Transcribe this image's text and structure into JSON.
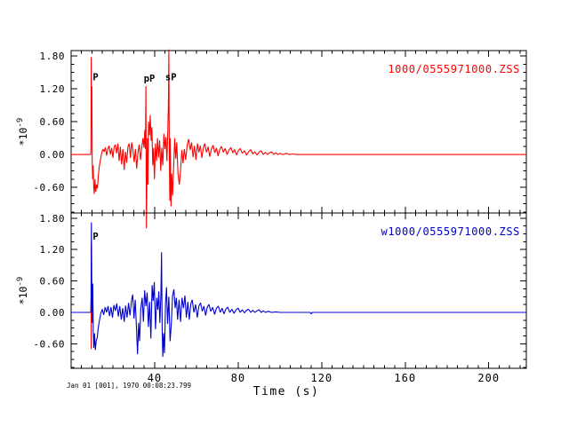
{
  "figure": {
    "background": "#ffffff",
    "axis_color": "#000000",
    "footer": {
      "timestamp": "Jan 01 [001], 1970 00:08:23.799",
      "xlabel": "Time (s)"
    }
  },
  "chart_data": [
    {
      "type": "line",
      "panel": "top",
      "legend": "1000/0555971000.ZSS",
      "line_color": "#ff0000",
      "ylabel": {
        "base": "*10",
        "exponent": "-9"
      },
      "xlim": [
        0,
        218
      ],
      "ylim": [
        -1.07,
        1.9
      ],
      "x_minor_step": 5,
      "y_minor_step": 0.15,
      "show_x_labels": false,
      "xticks": [
        {
          "value": 40,
          "label": "40"
        },
        {
          "value": 80,
          "label": "80"
        },
        {
          "value": 120,
          "label": "120"
        },
        {
          "value": 160,
          "label": "160"
        },
        {
          "value": 200,
          "label": "200"
        }
      ],
      "yticks": [
        {
          "value": 1.8,
          "label": "1.80"
        },
        {
          "value": 1.2,
          "label": "1.20"
        },
        {
          "value": 0.6,
          "label": "0.60"
        },
        {
          "value": 0.0,
          "label": "0.00"
        },
        {
          "value": -0.6,
          "label": "-0.60"
        }
      ],
      "phase_labels": [
        {
          "text": "P",
          "t": 10.4,
          "v": 1.36
        },
        {
          "text": "pP",
          "t": 34.8,
          "v": 1.33
        },
        {
          "text": "sP",
          "t": 45.1,
          "v": 1.36
        }
      ],
      "markers": [],
      "points": [
        [
          0,
          0
        ],
        [
          9.4,
          0
        ],
        [
          9.5,
          0.15
        ],
        [
          9.62,
          1.78
        ],
        [
          9.75,
          0.5
        ],
        [
          9.9,
          1.25
        ],
        [
          10.1,
          -0.1
        ],
        [
          10.3,
          -0.45
        ],
        [
          10.55,
          -0.2
        ],
        [
          10.8,
          -0.6
        ],
        [
          11.1,
          -0.72
        ],
        [
          11.4,
          -0.45
        ],
        [
          11.8,
          -0.68
        ],
        [
          12.2,
          -0.55
        ],
        [
          12.6,
          -0.62
        ],
        [
          13,
          -0.4
        ],
        [
          13.5,
          -0.22
        ],
        [
          14,
          -0.1
        ],
        [
          14.6,
          0.02
        ],
        [
          15.2,
          0.1
        ],
        [
          15.8,
          0.05
        ],
        [
          16.4,
          0.13
        ],
        [
          17,
          -0.02
        ],
        [
          17.6,
          0.1
        ],
        [
          18.2,
          0.16
        ],
        [
          18.8,
          0
        ],
        [
          19.4,
          0.12
        ],
        [
          20,
          -0.06
        ],
        [
          20.6,
          0.14
        ],
        [
          21.2,
          0.18
        ],
        [
          21.8,
          0.02
        ],
        [
          22.4,
          0.2
        ],
        [
          23,
          -0.12
        ],
        [
          23.6,
          0.14
        ],
        [
          24.2,
          -0.18
        ],
        [
          24.8,
          0.1
        ],
        [
          25.4,
          -0.28
        ],
        [
          26,
          0.05
        ],
        [
          26.6,
          -0.15
        ],
        [
          27.2,
          0.14
        ],
        [
          27.8,
          0.2
        ],
        [
          28.4,
          -0.06
        ],
        [
          29,
          0.22
        ],
        [
          29.6,
          0.08
        ],
        [
          30.2,
          -0.14
        ],
        [
          30.8,
          0.1
        ],
        [
          31.4,
          -0.26
        ],
        [
          32,
          0.04
        ],
        [
          32.6,
          0.18
        ],
        [
          33.2,
          -0.1
        ],
        [
          33.8,
          0.12
        ],
        [
          34.4,
          0.3
        ],
        [
          34.9,
          0.12
        ],
        [
          35.3,
          0.45
        ],
        [
          35.6,
          0.1
        ],
        [
          35.8,
          1.25
        ],
        [
          36.05,
          -1.35
        ],
        [
          36.3,
          -0.35
        ],
        [
          36.55,
          0.3
        ],
        [
          36.8,
          -0.55
        ],
        [
          37.1,
          0.6
        ],
        [
          37.5,
          0.35
        ],
        [
          37.9,
          0.72
        ],
        [
          38.3,
          0.25
        ],
        [
          38.7,
          0.5
        ],
        [
          39.1,
          -0.2
        ],
        [
          39.5,
          0.12
        ],
        [
          39.9,
          -0.45
        ],
        [
          40.4,
          0.2
        ],
        [
          40.9,
          -0.12
        ],
        [
          41.4,
          0.3
        ],
        [
          41.9,
          -0.05
        ],
        [
          42.4,
          0.26
        ],
        [
          42.9,
          -0.3
        ],
        [
          43.4,
          0.12
        ],
        [
          43.9,
          -0.2
        ],
        [
          44.4,
          0.38
        ],
        [
          44.9,
          0.1
        ],
        [
          45.4,
          0.32
        ],
        [
          45.9,
          -0.12
        ],
        [
          46.3,
          0.4
        ],
        [
          46.6,
          0.9
        ],
        [
          46.8,
          1.92
        ],
        [
          47,
          0.2
        ],
        [
          47.25,
          -0.85
        ],
        [
          47.5,
          0.3
        ],
        [
          47.8,
          -0.95
        ],
        [
          48.2,
          -0.35
        ],
        [
          48.6,
          -0.75
        ],
        [
          49.1,
          -0.25
        ],
        [
          49.6,
          0.3
        ],
        [
          50.1,
          -0.08
        ],
        [
          50.6,
          0.22
        ],
        [
          51.2,
          -0.35
        ],
        [
          51.8,
          -0.55
        ],
        [
          52.4,
          -0.3
        ],
        [
          53,
          0.08
        ],
        [
          53.6,
          -0.16
        ],
        [
          54.2,
          0.1
        ],
        [
          54.9,
          -0.1
        ],
        [
          55.6,
          0.18
        ],
        [
          56.3,
          0.28
        ],
        [
          57,
          0.08
        ],
        [
          57.7,
          0.22
        ],
        [
          58.4,
          -0.05
        ],
        [
          59.1,
          0.16
        ],
        [
          59.8,
          -0.1
        ],
        [
          60.5,
          0.2
        ],
        [
          61.2,
          0.04
        ],
        [
          61.9,
          0.16
        ],
        [
          62.6,
          -0.06
        ],
        [
          63.3,
          0.12
        ],
        [
          64,
          0.2
        ],
        [
          64.8,
          0.04
        ],
        [
          65.6,
          0.14
        ],
        [
          66.4,
          -0.04
        ],
        [
          67.2,
          0.1
        ],
        [
          68,
          0.17
        ],
        [
          68.8,
          0.03
        ],
        [
          69.6,
          0.12
        ],
        [
          70.4,
          -0.03
        ],
        [
          71.2,
          0.09
        ],
        [
          72,
          0.15
        ],
        [
          72.9,
          0.04
        ],
        [
          73.8,
          0.11
        ],
        [
          74.7,
          0
        ],
        [
          75.6,
          0.08
        ],
        [
          76.5,
          0.13
        ],
        [
          77.4,
          0.03
        ],
        [
          78.3,
          0.09
        ],
        [
          79.2,
          -0.01
        ],
        [
          80.1,
          0.07
        ],
        [
          81,
          0.11
        ],
        [
          82,
          0.02
        ],
        [
          83,
          0.07
        ],
        [
          84,
          -0.01
        ],
        [
          85,
          0.05
        ],
        [
          86,
          0.09
        ],
        [
          87,
          0.01
        ],
        [
          88,
          0.05
        ],
        [
          89,
          -0.01
        ],
        [
          90,
          0.04
        ],
        [
          91,
          0.07
        ],
        [
          92,
          0
        ],
        [
          93,
          0.04
        ],
        [
          94,
          0
        ],
        [
          95,
          0.03
        ],
        [
          96,
          0.05
        ],
        [
          97,
          0
        ],
        [
          98,
          0.03
        ],
        [
          99,
          0
        ],
        [
          100,
          0.02
        ],
        [
          101.5,
          0
        ],
        [
          103,
          0.02
        ],
        [
          104.5,
          0
        ],
        [
          106,
          0.01
        ],
        [
          108,
          0
        ],
        [
          218,
          0
        ]
      ]
    },
    {
      "type": "line",
      "panel": "bottom",
      "legend": "w1000/0555971000.ZSS",
      "line_color": "#0000cc",
      "ylabel": {
        "base": "*10",
        "exponent": "-9"
      },
      "xlim": [
        0,
        218
      ],
      "ylim": [
        -1.07,
        1.9
      ],
      "x_minor_step": 5,
      "y_minor_step": 0.15,
      "show_x_labels": true,
      "xticks": [
        {
          "value": 40,
          "label": "40"
        },
        {
          "value": 80,
          "label": "80"
        },
        {
          "value": 120,
          "label": "120"
        },
        {
          "value": 160,
          "label": "160"
        },
        {
          "value": 200,
          "label": "200"
        }
      ],
      "yticks": [
        {
          "value": 1.8,
          "label": "1.80"
        },
        {
          "value": 1.2,
          "label": "1.20"
        },
        {
          "value": 0.6,
          "label": "0.60"
        },
        {
          "value": 0.0,
          "label": "0.00"
        },
        {
          "value": -0.6,
          "label": "-0.60"
        }
      ],
      "phase_labels": [
        {
          "text": "P",
          "t": 10.4,
          "v": 1.39
        }
      ],
      "markers": [
        {
          "t": 9.6,
          "from": 1.32,
          "to": -0.7,
          "color": "#ff0000"
        }
      ],
      "points": [
        [
          0,
          0
        ],
        [
          9.4,
          0
        ],
        [
          9.55,
          0.3
        ],
        [
          9.7,
          1.72
        ],
        [
          9.9,
          0.4
        ],
        [
          10.1,
          -0.2
        ],
        [
          10.35,
          0.55
        ],
        [
          10.6,
          -0.35
        ],
        [
          10.85,
          -0.68
        ],
        [
          11.2,
          -0.4
        ],
        [
          11.6,
          -0.72
        ],
        [
          12,
          -0.55
        ],
        [
          12.5,
          -0.48
        ],
        [
          13,
          -0.3
        ],
        [
          13.6,
          -0.15
        ],
        [
          14.2,
          -0.02
        ],
        [
          14.9,
          0.06
        ],
        [
          15.6,
          -0.05
        ],
        [
          16.3,
          0.1
        ],
        [
          17,
          0
        ],
        [
          17.7,
          0.12
        ],
        [
          18.4,
          -0.07
        ],
        [
          19.1,
          0.1
        ],
        [
          19.8,
          -0.1
        ],
        [
          20.5,
          0.14
        ],
        [
          21.2,
          0.03
        ],
        [
          21.9,
          0.17
        ],
        [
          22.6,
          -0.08
        ],
        [
          23.3,
          0.12
        ],
        [
          24,
          -0.14
        ],
        [
          24.7,
          0.08
        ],
        [
          25.4,
          -0.18
        ],
        [
          26.1,
          0.13
        ],
        [
          26.8,
          -0.1
        ],
        [
          27.5,
          0.18
        ],
        [
          28.2,
          -0.06
        ],
        [
          28.9,
          0.22
        ],
        [
          29.5,
          0.34
        ],
        [
          30.1,
          -0.12
        ],
        [
          30.7,
          0.24
        ],
        [
          31.3,
          -0.3
        ],
        [
          31.8,
          -0.8
        ],
        [
          32.3,
          -0.2
        ],
        [
          32.8,
          -0.55
        ],
        [
          33.4,
          0.08
        ],
        [
          34,
          0.28
        ],
        [
          34.6,
          -0.18
        ],
        [
          35.2,
          0.42
        ],
        [
          35.8,
          0.12
        ],
        [
          36.4,
          0.38
        ],
        [
          37,
          -0.28
        ],
        [
          37.6,
          0.2
        ],
        [
          38.2,
          -0.5
        ],
        [
          38.8,
          0.52
        ],
        [
          39.3,
          0.22
        ],
        [
          39.8,
          0.58
        ],
        [
          40.4,
          -0.32
        ],
        [
          41,
          0.28
        ],
        [
          41.5,
          0.05
        ],
        [
          42,
          0.4
        ],
        [
          42.5,
          -0.2
        ],
        [
          43,
          0.35
        ],
        [
          43.3,
          1.15
        ],
        [
          43.6,
          -0.3
        ],
        [
          43.9,
          -0.85
        ],
        [
          44.3,
          -0.4
        ],
        [
          44.7,
          -0.78
        ],
        [
          45.2,
          0.18
        ],
        [
          45.7,
          0.48
        ],
        [
          46.2,
          -0.22
        ],
        [
          46.8,
          0.3
        ],
        [
          47.4,
          -0.55
        ],
        [
          48,
          -0.22
        ],
        [
          48.6,
          0.32
        ],
        [
          49.2,
          0.44
        ],
        [
          49.8,
          0.08
        ],
        [
          50.4,
          0.28
        ],
        [
          51,
          -0.14
        ],
        [
          51.7,
          0.24
        ],
        [
          52.4,
          -0.18
        ],
        [
          53.1,
          0.28
        ],
        [
          53.8,
          0.08
        ],
        [
          54.5,
          0.32
        ],
        [
          55.2,
          -0.1
        ],
        [
          55.9,
          0.2
        ],
        [
          56.6,
          -0.14
        ],
        [
          57.3,
          0.16
        ],
        [
          58,
          0.24
        ],
        [
          58.8,
          0
        ],
        [
          59.6,
          0.15
        ],
        [
          60.4,
          -0.1
        ],
        [
          61.2,
          0.12
        ],
        [
          62,
          0.18
        ],
        [
          62.8,
          0.02
        ],
        [
          63.6,
          0.12
        ],
        [
          64.4,
          -0.06
        ],
        [
          65.2,
          0.1
        ],
        [
          66,
          0.15
        ],
        [
          66.9,
          0.02
        ],
        [
          67.8,
          0.1
        ],
        [
          68.7,
          -0.04
        ],
        [
          69.6,
          0.08
        ],
        [
          70.5,
          0.12
        ],
        [
          71.4,
          0
        ],
        [
          72.3,
          0.08
        ],
        [
          73.2,
          -0.03
        ],
        [
          74.1,
          0.06
        ],
        [
          75,
          0.1
        ],
        [
          76,
          0
        ],
        [
          77,
          0.06
        ],
        [
          78,
          -0.02
        ],
        [
          79,
          0.05
        ],
        [
          80,
          0.08
        ],
        [
          81,
          0
        ],
        [
          82,
          0.05
        ],
        [
          83,
          -0.01
        ],
        [
          84,
          0.04
        ],
        [
          85,
          0.06
        ],
        [
          86,
          0
        ],
        [
          87,
          0.04
        ],
        [
          88,
          0
        ],
        [
          89,
          0.03
        ],
        [
          90,
          0.05
        ],
        [
          91,
          0
        ],
        [
          92,
          0.03
        ],
        [
          93,
          0
        ],
        [
          94.5,
          0.02
        ],
        [
          96,
          0
        ],
        [
          98,
          0.01
        ],
        [
          100,
          0
        ],
        [
          114.5,
          0
        ],
        [
          115,
          -0.03
        ],
        [
          115.5,
          0
        ],
        [
          218,
          0
        ]
      ]
    }
  ]
}
